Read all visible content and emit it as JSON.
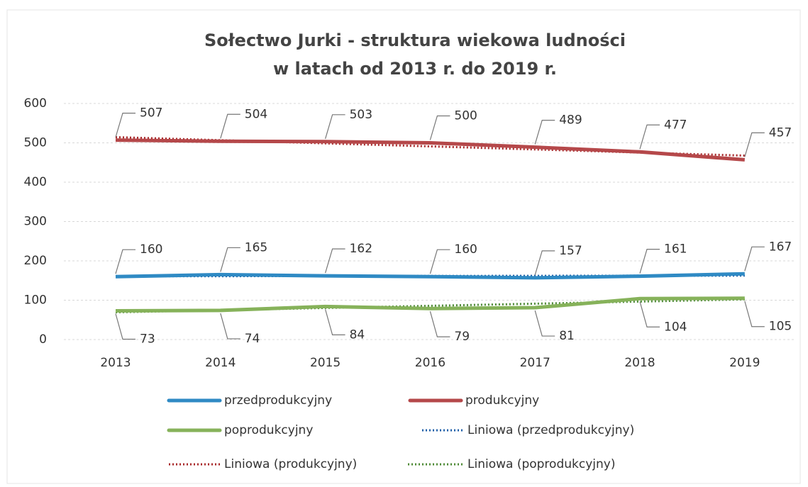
{
  "chart_data": {
    "type": "line",
    "title": [
      "Sołectwo Jurki - struktura wiekowa ludności",
      "w latach od 2013 r. do 2019 r."
    ],
    "categories": [
      "2013",
      "2014",
      "2015",
      "2016",
      "2017",
      "2018",
      "2019"
    ],
    "ylim": [
      0,
      600
    ],
    "yticks": [
      0,
      100,
      200,
      300,
      400,
      500,
      600
    ],
    "grid": true,
    "series": [
      {
        "name": "przedprodukcyjny",
        "color": "#2f8ac4",
        "values": [
          160,
          165,
          162,
          160,
          157,
          161,
          167
        ]
      },
      {
        "name": "produkcyjny",
        "color": "#b5484a",
        "values": [
          507,
          504,
          503,
          500,
          489,
          477,
          457
        ]
      },
      {
        "name": "poprodukcyjny",
        "color": "#86b25a",
        "values": [
          73,
          74,
          84,
          79,
          81,
          104,
          105
        ]
      },
      {
        "name": "Liniowa (przedprodukcyjny)",
        "color": "#1f5fa8",
        "dotted": true,
        "values": [
          160.9,
          161.1,
          161.4,
          161.7,
          162.0,
          162.3,
          162.6
        ]
      },
      {
        "name": "Liniowa (produkcyjny)",
        "color": "#a8282a",
        "dotted": true,
        "values": [
          514.4,
          506.6,
          498.8,
          491.0,
          483.2,
          475.4,
          467.6
        ]
      },
      {
        "name": "Liniowa (poprodukcyjny)",
        "color": "#4d8a35",
        "dotted": true,
        "values": [
          69.3,
          74.8,
          80.3,
          85.7,
          91.2,
          96.6,
          102.1
        ]
      }
    ]
  }
}
